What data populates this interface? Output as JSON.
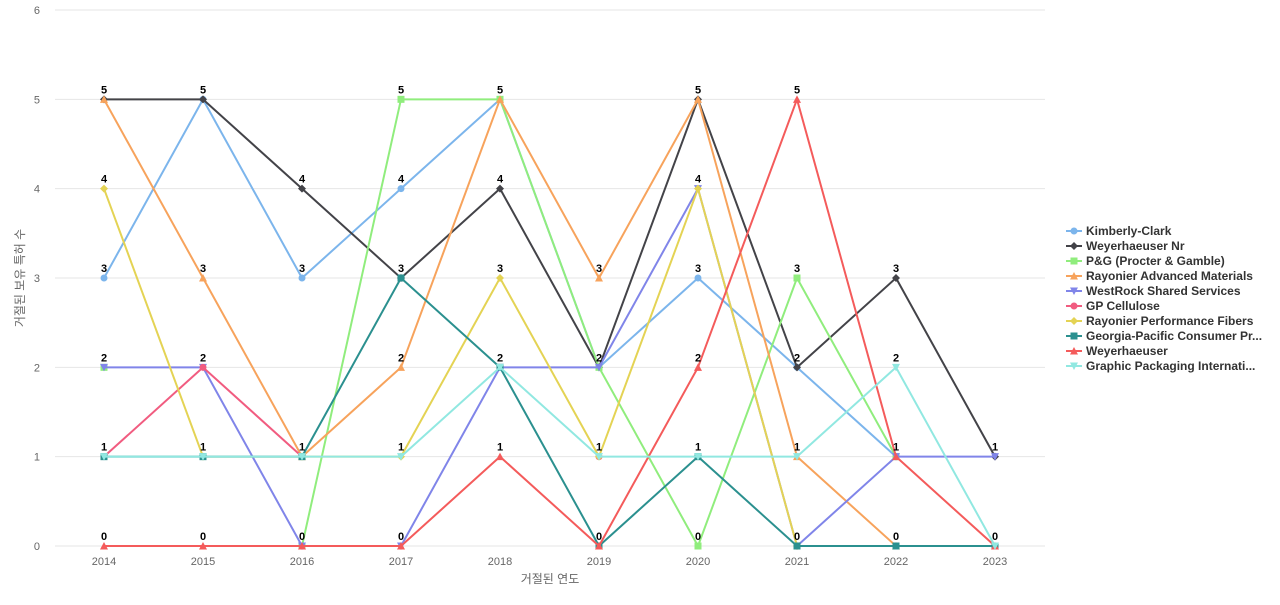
{
  "chart_data": {
    "type": "line",
    "title": "",
    "xlabel": "거절된 연도",
    "ylabel": "거절된 보유 특허 수",
    "x": [
      "2014",
      "2015",
      "2016",
      "2017",
      "2018",
      "2019",
      "2020",
      "2021",
      "2022",
      "2023"
    ],
    "ylim": [
      0,
      6
    ],
    "yticks": [
      "0",
      "1",
      "2",
      "3",
      "4",
      "5",
      "6"
    ],
    "grid": true,
    "legend_position": "right",
    "series": [
      {
        "name": "Kimberly-Clark",
        "color": "#7cb5ec",
        "marker": "circle",
        "values": [
          3,
          5,
          3,
          4,
          5,
          2,
          3,
          2,
          1,
          null
        ]
      },
      {
        "name": "Weyerhaeuser Nr",
        "color": "#434348",
        "marker": "diamond",
        "values": [
          5,
          5,
          4,
          3,
          4,
          2,
          5,
          2,
          3,
          1
        ]
      },
      {
        "name": "P&G (Procter & Gamble)",
        "color": "#90ed7d",
        "marker": "square",
        "values": [
          2,
          null,
          0,
          5,
          5,
          2,
          0,
          3,
          1,
          null
        ]
      },
      {
        "name": "Rayonier Advanced Materials",
        "color": "#f7a35c",
        "marker": "triangle",
        "values": [
          5,
          3,
          1,
          2,
          5,
          3,
          5,
          1,
          0,
          null
        ]
      },
      {
        "name": "WestRock Shared Services",
        "color": "#8085e9",
        "marker": "triangle-down",
        "values": [
          2,
          2,
          0,
          0,
          2,
          2,
          4,
          0,
          1,
          1
        ]
      },
      {
        "name": "GP Cellulose",
        "color": "#f15c80",
        "marker": "circle",
        "values": [
          1,
          2,
          1,
          null,
          null,
          1,
          null,
          null,
          null,
          0
        ]
      },
      {
        "name": "Rayonier Performance Fibers",
        "color": "#e4d354",
        "marker": "diamond",
        "values": [
          4,
          1,
          1,
          1,
          3,
          1,
          4,
          0,
          null,
          null
        ]
      },
      {
        "name": "Georgia-Pacific Consumer Pr...",
        "color": "#2b908f",
        "marker": "square",
        "values": [
          1,
          1,
          1,
          3,
          2,
          0,
          1,
          0,
          0,
          0
        ]
      },
      {
        "name": "Weyerhaeuser",
        "color": "#f45b5b",
        "marker": "triangle",
        "values": [
          0,
          0,
          0,
          0,
          1,
          0,
          2,
          5,
          1,
          0
        ]
      },
      {
        "name": "Graphic Packaging Internati...",
        "color": "#91e8e1",
        "marker": "triangle-down",
        "values": [
          1,
          1,
          1,
          1,
          2,
          1,
          1,
          1,
          2,
          0
        ]
      }
    ],
    "data_labels": [
      {
        "x": "2014",
        "values": [
          5,
          4,
          3,
          2,
          1,
          0
        ]
      },
      {
        "x": "2015",
        "values": [
          5,
          3,
          2,
          1,
          0
        ]
      },
      {
        "x": "2016",
        "values": [
          4,
          3,
          1,
          0
        ]
      },
      {
        "x": "2017",
        "values": [
          5,
          4,
          3,
          2,
          1,
          0
        ]
      },
      {
        "x": "2018",
        "values": [
          5,
          4,
          3,
          2,
          1
        ]
      },
      {
        "x": "2019",
        "values": [
          3,
          2,
          1,
          0
        ]
      },
      {
        "x": "2020",
        "values": [
          5,
          4,
          3,
          2,
          1,
          0
        ]
      },
      {
        "x": "2021",
        "values": [
          5,
          3,
          2,
          1,
          0
        ]
      },
      {
        "x": "2022",
        "values": [
          3,
          2,
          1,
          0
        ]
      },
      {
        "x": "2023",
        "values": [
          1,
          0
        ]
      }
    ]
  }
}
